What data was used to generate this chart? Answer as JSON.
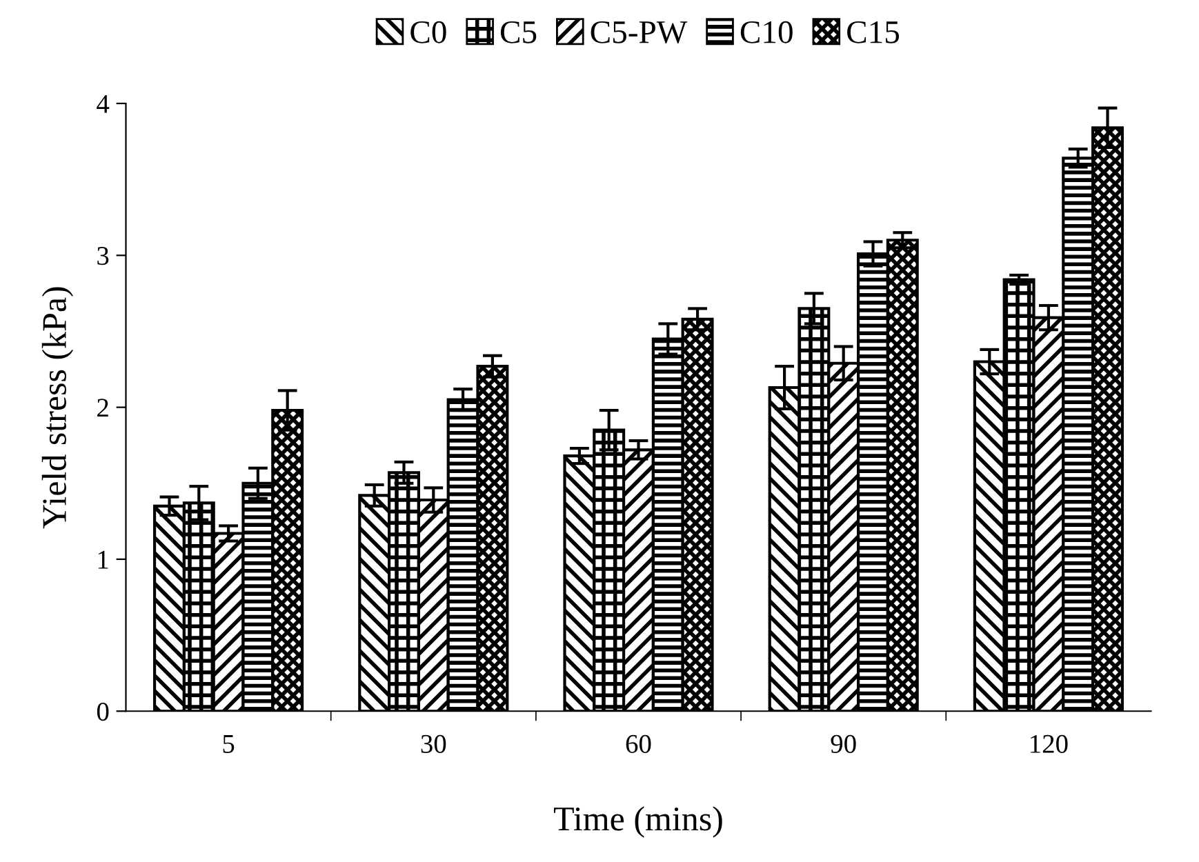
{
  "chart_data": {
    "type": "bar",
    "xlabel": "Time (mins)",
    "ylabel": "Yield stress (kPa)",
    "categories": [
      "5",
      "30",
      "60",
      "90",
      "120"
    ],
    "series": [
      {
        "name": "C0",
        "color": "#000000",
        "values": [
          1.35,
          1.42,
          1.68,
          2.13,
          2.3
        ],
        "errors": [
          0.06,
          0.07,
          0.05,
          0.14,
          0.08
        ]
      },
      {
        "name": "C5",
        "color": "#000000",
        "values": [
          1.37,
          1.57,
          1.85,
          2.65,
          2.84
        ],
        "errors": [
          0.11,
          0.07,
          0.13,
          0.1,
          0.03
        ]
      },
      {
        "name": "C5-PW",
        "color": "#000000",
        "values": [
          1.17,
          1.39,
          1.72,
          2.29,
          2.59
        ],
        "errors": [
          0.05,
          0.08,
          0.06,
          0.11,
          0.08
        ]
      },
      {
        "name": "C10",
        "color": "#000000",
        "values": [
          1.5,
          2.05,
          2.45,
          3.01,
          3.64
        ],
        "errors": [
          0.1,
          0.07,
          0.1,
          0.08,
          0.06
        ]
      },
      {
        "name": "C15",
        "color": "#000000",
        "values": [
          1.98,
          2.27,
          2.58,
          3.1,
          3.84
        ],
        "errors": [
          0.13,
          0.07,
          0.07,
          0.05,
          0.13
        ]
      }
    ],
    "ylim": [
      0,
      4
    ],
    "yticks": [
      0,
      1,
      2,
      3,
      4
    ],
    "grid": false,
    "legend": "top"
  }
}
